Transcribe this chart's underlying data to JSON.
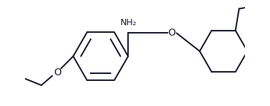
{
  "bg_color": "#ffffff",
  "line_color": "#1a1a2e",
  "line_width": 1.5,
  "font_size": 9,
  "NH2_label": "NH₂",
  "O_label": "O",
  "O_label2": "O",
  "fig_width": 3.88,
  "fig_height": 1.52
}
